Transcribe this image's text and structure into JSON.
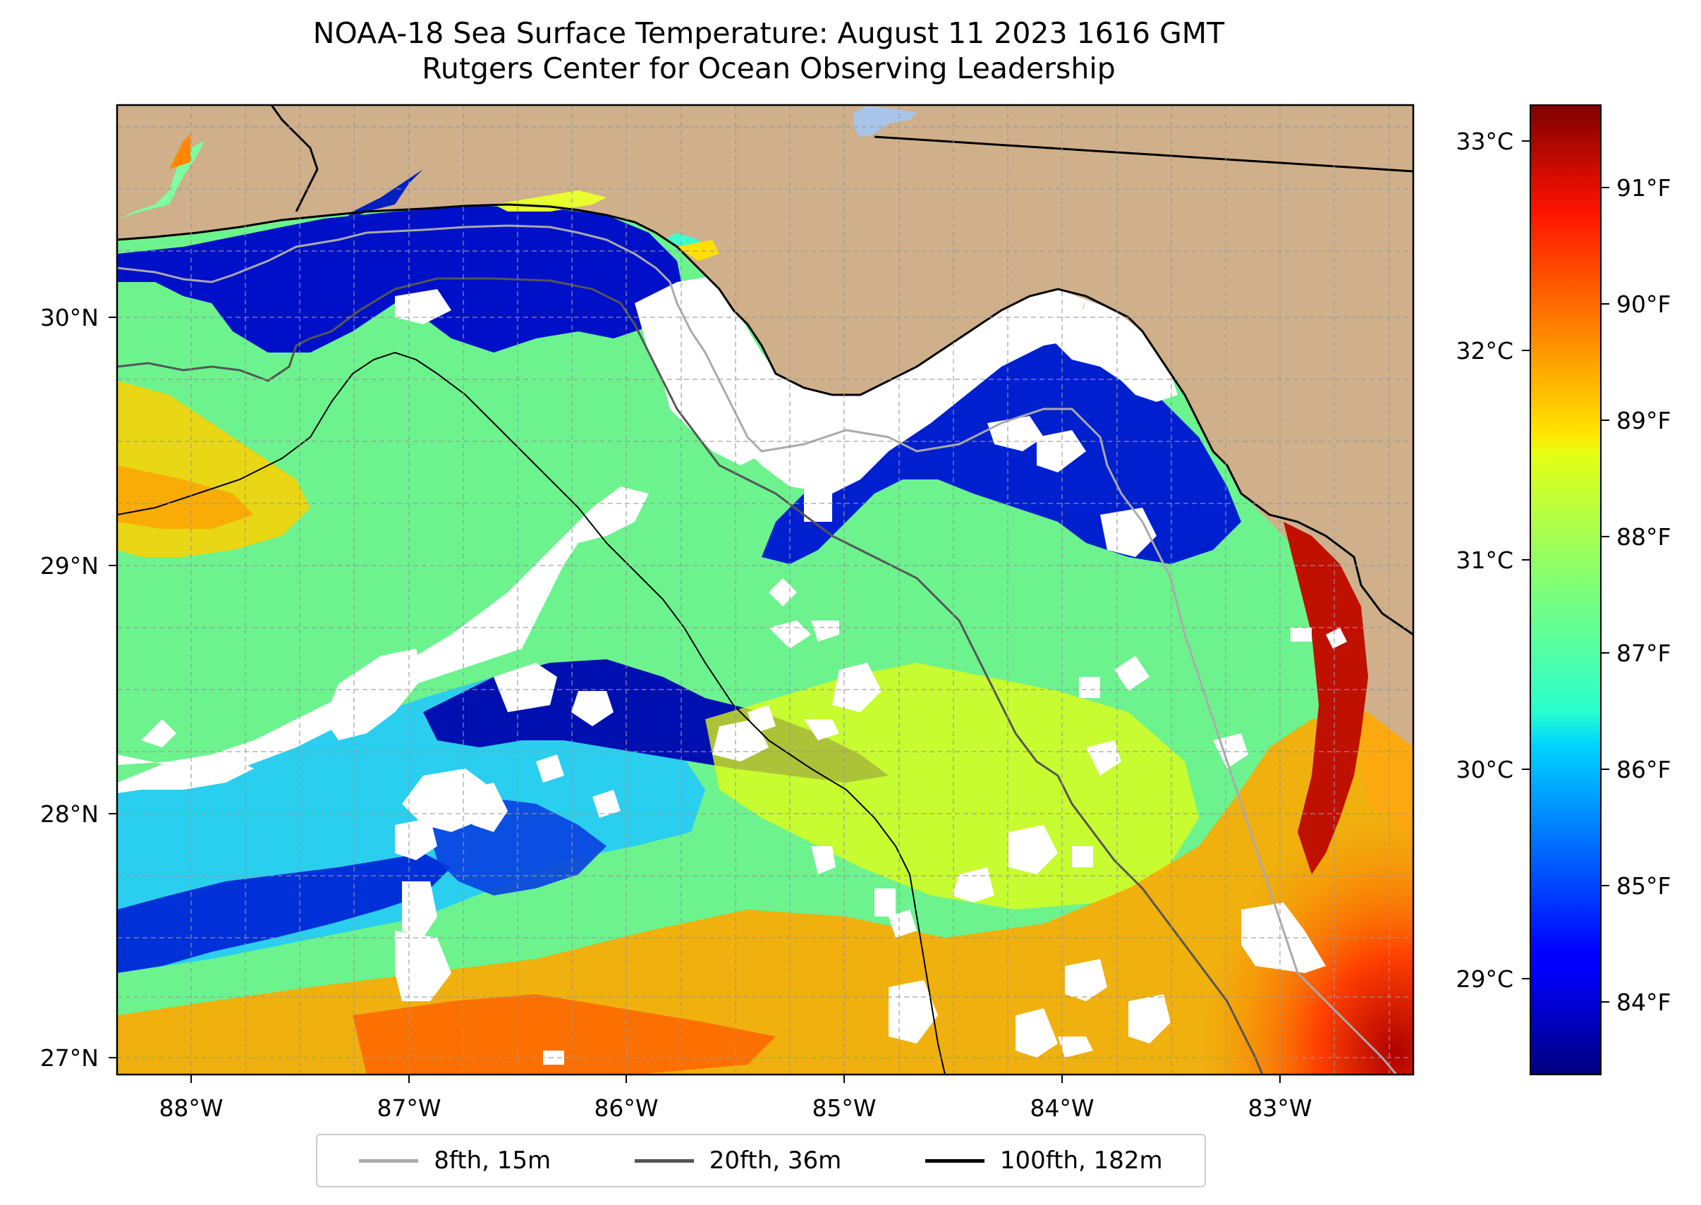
{
  "title": {
    "line1": "NOAA-18 Sea Surface Temperature: August 11 2023 1616 GMT",
    "line2": "Rutgers Center for Ocean Observing Leadership"
  },
  "map": {
    "lon_labels": [
      "88°W",
      "87°W",
      "86°W",
      "85°W",
      "84°W",
      "83°W"
    ],
    "lat_labels": [
      "30°N",
      "29°N",
      "28°N",
      "27°N"
    ],
    "lon_range": [
      -88.33,
      -82.42
    ],
    "lat_range": [
      26.94,
      30.86
    ],
    "land_color": "#cfb08b",
    "no_data_color": "#ffffff",
    "grid": true
  },
  "colorbar": {
    "celsius_labels": [
      "33°C",
      "32°C",
      "31°C",
      "30°C",
      "29°C"
    ],
    "fahrenheit_labels": [
      "91°F",
      "90°F",
      "89°F",
      "88°F",
      "87°F",
      "86°F",
      "85°F",
      "84°F"
    ],
    "colormap": "jet",
    "range_celsius": [
      28.5,
      33.2
    ]
  },
  "legend": {
    "items": [
      {
        "label": "8fth, 15m",
        "color": "#aaaaaa"
      },
      {
        "label": "20fth, 36m",
        "color": "#555555"
      },
      {
        "label": "100fth, 182m",
        "color": "#000000"
      }
    ]
  }
}
